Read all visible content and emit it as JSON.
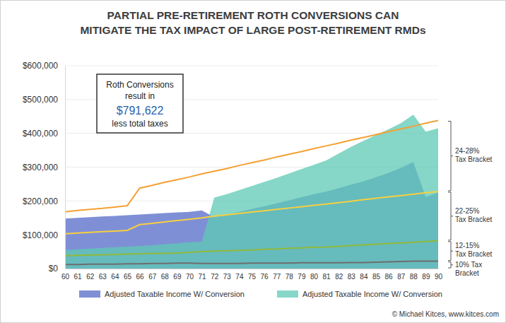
{
  "chart_data": {
    "type": "area",
    "title": [
      "PARTIAL PRE-RETIREMENT ROTH CONVERSIONS CAN",
      "MITIGATE THE TAX IMPACT OF LARGE POST-RETIREMENT RMDs"
    ],
    "annotation": [
      "Roth Conversions",
      "result in",
      "$791,622",
      "less total taxes"
    ],
    "bracket_labels": [
      [
        "24-28%",
        "Tax Bracket"
      ],
      [
        "22-25%",
        "Tax Bracket"
      ],
      [
        "12-15%",
        "Tax Bracket"
      ],
      [
        "10% Tax",
        "Bracket"
      ]
    ],
    "source": "© Michael Kitces, www.kitces.com",
    "x": [
      60,
      61,
      62,
      63,
      64,
      65,
      66,
      67,
      68,
      69,
      70,
      71,
      72,
      73,
      74,
      75,
      76,
      77,
      78,
      79,
      80,
      81,
      82,
      83,
      84,
      85,
      86,
      87,
      88,
      89,
      90
    ],
    "xlim": [
      60,
      90
    ],
    "xticks": [
      60,
      61,
      62,
      63,
      64,
      65,
      66,
      67,
      68,
      69,
      70,
      71,
      72,
      73,
      74,
      75,
      76,
      77,
      78,
      79,
      80,
      81,
      82,
      83,
      84,
      85,
      86,
      87,
      88,
      89,
      90
    ],
    "ylim": [
      0,
      600000
    ],
    "yticks": [
      {
        "value": 0,
        "label": "$0"
      },
      {
        "value": 100000,
        "label": "$100,000"
      },
      {
        "value": 200000,
        "label": "$200,000"
      },
      {
        "value": 300000,
        "label": "$300,000"
      },
      {
        "value": 400000,
        "label": "$400,000"
      },
      {
        "value": 500000,
        "label": "$500,000"
      },
      {
        "value": 600000,
        "label": "$600,000"
      }
    ],
    "grid": true,
    "legend": "bottom",
    "series": [
      {
        "name": "Adjusted Taxable Income W/ Conversion",
        "type": "area",
        "color": "#7f8fd6",
        "values": [
          148000,
          150000,
          152000,
          154000,
          156000,
          158000,
          160000,
          162000,
          164000,
          166000,
          168000,
          172000,
          152000,
          160000,
          168000,
          176000,
          184000,
          193000,
          202000,
          211000,
          220000,
          228000,
          238000,
          248000,
          258000,
          270000,
          283000,
          298000,
          315000,
          212000,
          225000
        ]
      },
      {
        "name": "Adjusted Taxable Income W/ Conversion",
        "type": "area",
        "color": "#5ecab4",
        "values": [
          55000,
          57000,
          59000,
          61000,
          63000,
          65000,
          67000,
          69000,
          72000,
          75000,
          78000,
          80000,
          210000,
          220000,
          232000,
          244000,
          256000,
          268000,
          281000,
          294000,
          307000,
          320000,
          340000,
          360000,
          378000,
          395000,
          412000,
          430000,
          455000,
          405000,
          415000
        ]
      },
      {
        "type": "line",
        "color": "#f5a033",
        "values": [
          168000,
          172000,
          175000,
          178000,
          182000,
          186000,
          238000,
          246000,
          255000,
          263000,
          271000,
          280000,
          288000,
          296000,
          305000,
          313000,
          321000,
          330000,
          338000,
          346000,
          355000,
          363000,
          371000,
          380000,
          388000,
          396000,
          405000,
          413000,
          421000,
          430000,
          438000
        ]
      },
      {
        "type": "line",
        "color": "#f7d040",
        "values": [
          103000,
          105000,
          107000,
          109000,
          111000,
          113000,
          130000,
          134000,
          138000,
          142000,
          146000,
          150000,
          155000,
          159000,
          163000,
          167000,
          171000,
          175000,
          179000,
          183000,
          187000,
          191000,
          195000,
          199000,
          204000,
          208000,
          212000,
          216000,
          220000,
          224000,
          228000
        ]
      },
      {
        "type": "line",
        "color": "#8fba3a",
        "values": [
          38000,
          39000,
          40000,
          41000,
          42000,
          43000,
          44000,
          45000,
          45000,
          46000,
          48000,
          50000,
          52000,
          53000,
          54000,
          55000,
          57000,
          58000,
          60000,
          61000,
          63000,
          64000,
          66000,
          68000,
          70000,
          72000,
          74000,
          76000,
          78000,
          80000,
          82000
        ]
      },
      {
        "type": "line",
        "color": "#6e6e6e",
        "values": [
          12000,
          12000,
          13000,
          13000,
          13000,
          14000,
          14000,
          15000,
          15000,
          16000,
          16000,
          15000,
          15000,
          15000,
          15000,
          16000,
          16000,
          16000,
          16000,
          17000,
          17000,
          17000,
          17000,
          18000,
          18000,
          19000,
          20000,
          21000,
          22000,
          22000,
          22000
        ]
      }
    ]
  }
}
